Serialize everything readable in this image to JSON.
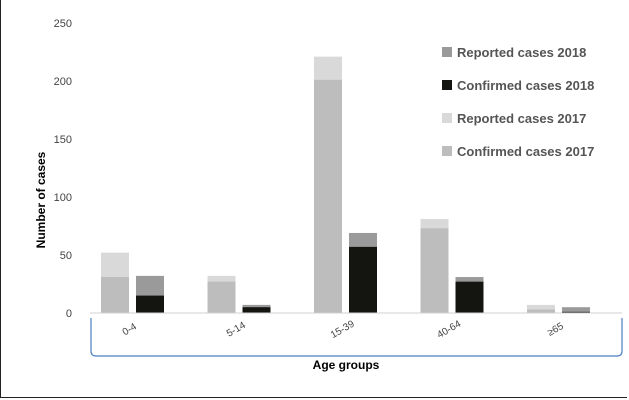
{
  "chart_data": {
    "type": "bar",
    "stacked": true,
    "grouped": true,
    "categories": [
      "0-4",
      "5-14",
      "15-39",
      "40-64",
      "≥65"
    ],
    "xlabel": "Age groups",
    "ylabel": "Number of cases",
    "ylim": [
      0,
      250
    ],
    "yticks": [
      0,
      50,
      100,
      150,
      200,
      250
    ],
    "grid": false,
    "legend_position": "right",
    "groups": [
      {
        "year": "2017",
        "confirmed": {
          "name": "Confirmed cases 2017",
          "color": "#bdbdbd",
          "values": [
            31,
            27,
            201,
            73,
            3
          ]
        },
        "reported": {
          "name": "Reported cases 2017",
          "color": "#d9d9d9",
          "values": [
            52,
            32,
            221,
            81,
            7
          ]
        }
      },
      {
        "year": "2018",
        "confirmed": {
          "name": "Confirmed cases 2018",
          "color": "#141410",
          "values": [
            15,
            5,
            57,
            27,
            1
          ]
        },
        "reported": {
          "name": "Reported cases 2018",
          "color": "#9a9a9a",
          "values": [
            32,
            7,
            69,
            31,
            5
          ]
        }
      }
    ],
    "legend": [
      {
        "label": "Reported cases 2018",
        "color": "#9a9a9a"
      },
      {
        "label": "Confirmed cases 2018",
        "color": "#141410"
      },
      {
        "label": "Reported cases 2017",
        "color": "#d9d9d9"
      },
      {
        "label": "Confirmed cases 2017",
        "color": "#bdbdbd"
      }
    ]
  }
}
